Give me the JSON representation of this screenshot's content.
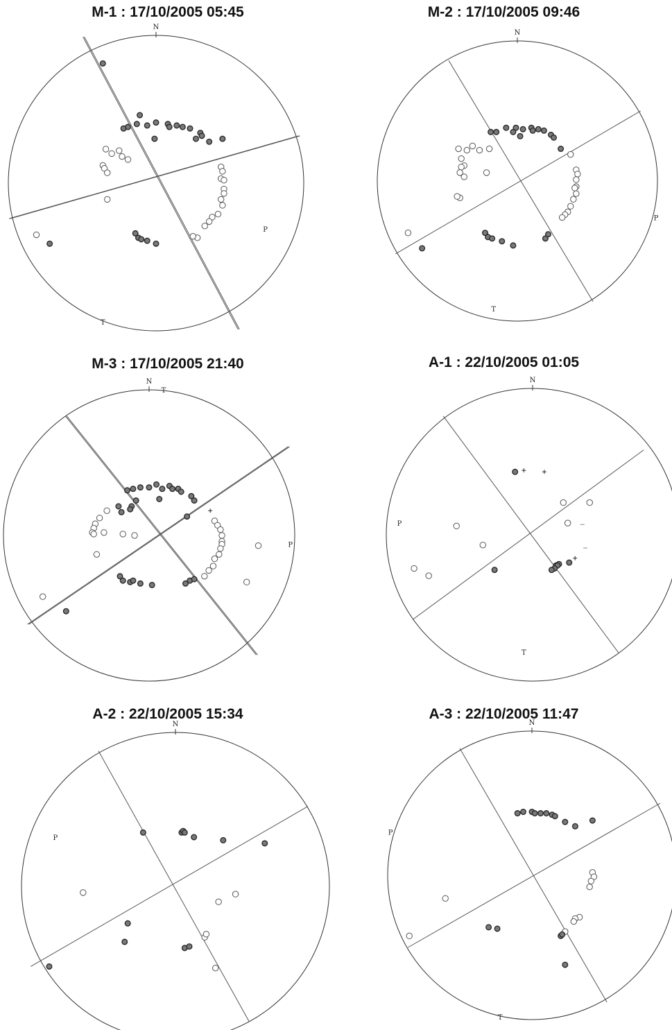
{
  "labels": {
    "north": "N",
    "p_axis": "P",
    "t_axis": "T"
  },
  "colors": {
    "stroke": "#333333",
    "filled": "#7a7a7a",
    "line": "#555555"
  },
  "panels": [
    {
      "id": "M-1",
      "title": "M-1 : 17/10/2005 05:45",
      "planes": [
        {
          "a": [
            -0.49,
            -0.99
          ],
          "b": [
            0.56,
            0.99
          ],
          "double": true
        },
        {
          "a": [
            -0.99,
            0.24
          ],
          "b": [
            0.97,
            -0.32
          ],
          "double": true
        }
      ],
      "p": [
        0.74,
        0.31
      ],
      "t": [
        -0.36,
        0.94
      ],
      "filled": [
        [
          -0.36,
          -0.81
        ],
        [
          -0.11,
          -0.46
        ],
        [
          -0.22,
          -0.37
        ],
        [
          -0.19,
          -0.38
        ],
        [
          -0.13,
          -0.4
        ],
        [
          -0.06,
          -0.39
        ],
        [
          0.0,
          -0.41
        ],
        [
          0.08,
          -0.4
        ],
        [
          0.09,
          -0.38
        ],
        [
          0.14,
          -0.39
        ],
        [
          0.18,
          -0.38
        ],
        [
          0.23,
          -0.37
        ],
        [
          0.3,
          -0.34
        ],
        [
          0.31,
          -0.32
        ],
        [
          0.36,
          -0.28
        ],
        [
          0.45,
          -0.3
        ],
        [
          -0.01,
          -0.3
        ],
        [
          0.27,
          -0.3
        ],
        [
          -0.14,
          0.34
        ],
        [
          -0.12,
          0.37
        ],
        [
          -0.1,
          0.38
        ],
        [
          -0.06,
          0.39
        ],
        [
          0.0,
          0.41
        ],
        [
          -0.72,
          0.41
        ]
      ],
      "open": [
        [
          -0.34,
          -0.23
        ],
        [
          -0.36,
          -0.12
        ],
        [
          -0.35,
          -0.1
        ],
        [
          -0.33,
          -0.07
        ],
        [
          -0.3,
          -0.2
        ],
        [
          -0.25,
          -0.22
        ],
        [
          -0.23,
          -0.18
        ],
        [
          -0.19,
          -0.16
        ],
        [
          -0.33,
          0.11
        ],
        [
          -0.81,
          0.35
        ],
        [
          0.44,
          -0.11
        ],
        [
          0.45,
          -0.08
        ],
        [
          0.44,
          -0.03
        ],
        [
          0.46,
          -0.02
        ],
        [
          0.46,
          0.04
        ],
        [
          0.46,
          0.07
        ],
        [
          0.44,
          0.11
        ],
        [
          0.45,
          0.15
        ],
        [
          0.42,
          0.21
        ],
        [
          0.38,
          0.23
        ],
        [
          0.36,
          0.26
        ],
        [
          0.33,
          0.29
        ],
        [
          0.28,
          0.37
        ],
        [
          0.25,
          0.36
        ]
      ],
      "plus": []
    },
    {
      "id": "M-2",
      "title": "M-2 : 17/10/2005 09:46",
      "planes": [
        {
          "a": [
            -0.49,
            -0.86
          ],
          "b": [
            0.54,
            0.86
          ]
        },
        {
          "a": [
            -0.87,
            0.52
          ],
          "b": [
            0.88,
            -0.5
          ]
        }
      ],
      "p": [
        0.99,
        0.26
      ],
      "t": [
        -0.17,
        0.91
      ],
      "filled": [
        [
          -0.19,
          -0.35
        ],
        [
          -0.15,
          -0.35
        ],
        [
          -0.08,
          -0.38
        ],
        [
          -0.03,
          -0.35
        ],
        [
          -0.01,
          -0.38
        ],
        [
          0.04,
          -0.37
        ],
        [
          0.1,
          -0.38
        ],
        [
          0.11,
          -0.36
        ],
        [
          0.15,
          -0.37
        ],
        [
          0.19,
          -0.36
        ],
        [
          0.24,
          -0.33
        ],
        [
          0.26,
          -0.31
        ],
        [
          0.31,
          -0.23
        ],
        [
          0.02,
          -0.32
        ],
        [
          -0.23,
          0.37
        ],
        [
          -0.21,
          0.4
        ],
        [
          -0.18,
          0.41
        ],
        [
          -0.11,
          0.43
        ],
        [
          -0.03,
          0.46
        ],
        [
          0.2,
          0.41
        ],
        [
          0.22,
          0.38
        ],
        [
          -0.68,
          0.48
        ]
      ],
      "open": [
        [
          -0.42,
          -0.23
        ],
        [
          -0.36,
          -0.22
        ],
        [
          -0.32,
          -0.25
        ],
        [
          -0.27,
          -0.22
        ],
        [
          -0.2,
          -0.23
        ],
        [
          -0.4,
          -0.16
        ],
        [
          -0.38,
          -0.11
        ],
        [
          -0.4,
          -0.1
        ],
        [
          -0.41,
          -0.06
        ],
        [
          -0.38,
          -0.03
        ],
        [
          -0.22,
          -0.06
        ],
        [
          -0.41,
          0.12
        ],
        [
          -0.43,
          0.11
        ],
        [
          -0.78,
          0.37
        ],
        [
          0.38,
          -0.19
        ],
        [
          0.42,
          -0.08
        ],
        [
          0.43,
          -0.05
        ],
        [
          0.42,
          -0.01
        ],
        [
          0.42,
          0.04
        ],
        [
          0.41,
          0.05
        ],
        [
          0.42,
          0.09
        ],
        [
          0.4,
          0.13
        ],
        [
          0.38,
          0.18
        ],
        [
          0.36,
          0.22
        ],
        [
          0.34,
          0.24
        ],
        [
          0.32,
          0.26
        ]
      ],
      "plus": []
    },
    {
      "id": "M-3",
      "title": "M-3 : 17/10/2005 21:40",
      "planes": [
        {
          "a": [
            -0.57,
            -0.82
          ],
          "b": [
            0.74,
            0.82
          ],
          "double": true
        },
        {
          "a": [
            -0.83,
            0.61
          ],
          "b": [
            0.96,
            -0.61
          ],
          "double": true
        }
      ],
      "p": [
        0.97,
        0.06
      ],
      "t": [
        0.1,
        -1.0
      ],
      "filled": [
        [
          -0.15,
          -0.31
        ],
        [
          -0.11,
          -0.32
        ],
        [
          -0.06,
          -0.33
        ],
        [
          0.0,
          -0.33
        ],
        [
          0.05,
          -0.35
        ],
        [
          0.09,
          -0.32
        ],
        [
          0.14,
          -0.34
        ],
        [
          0.16,
          -0.32
        ],
        [
          0.2,
          -0.32
        ],
        [
          0.22,
          -0.3
        ],
        [
          0.29,
          -0.27
        ],
        [
          0.31,
          -0.24
        ],
        [
          -0.21,
          -0.2
        ],
        [
          -0.12,
          -0.2
        ],
        [
          -0.09,
          -0.24
        ],
        [
          -0.13,
          -0.18
        ],
        [
          -0.19,
          -0.16
        ],
        [
          0.07,
          -0.25
        ],
        [
          0.26,
          -0.13
        ],
        [
          -0.2,
          0.28
        ],
        [
          -0.18,
          0.31
        ],
        [
          -0.13,
          0.32
        ],
        [
          -0.11,
          0.31
        ],
        [
          -0.06,
          0.33
        ],
        [
          0.02,
          0.34
        ],
        [
          0.25,
          0.33
        ],
        [
          0.28,
          0.31
        ],
        [
          0.31,
          0.3
        ],
        [
          -0.57,
          0.52
        ]
      ],
      "open": [
        [
          -0.29,
          -0.17
        ],
        [
          -0.34,
          -0.12
        ],
        [
          -0.37,
          -0.08
        ],
        [
          -0.38,
          -0.05
        ],
        [
          -0.39,
          -0.02
        ],
        [
          -0.38,
          -0.01
        ],
        [
          -0.31,
          -0.02
        ],
        [
          -0.18,
          -0.01
        ],
        [
          -0.1,
          -0.0
        ],
        [
          -0.36,
          0.13
        ],
        [
          -0.73,
          0.42
        ],
        [
          0.45,
          -0.1
        ],
        [
          0.47,
          -0.07
        ],
        [
          0.49,
          -0.04
        ],
        [
          0.5,
          -0.0
        ],
        [
          0.5,
          0.04
        ],
        [
          0.5,
          0.06
        ],
        [
          0.49,
          0.09
        ],
        [
          0.48,
          0.13
        ],
        [
          0.45,
          0.16
        ],
        [
          0.44,
          0.21
        ],
        [
          0.41,
          0.24
        ],
        [
          0.38,
          0.28
        ],
        [
          0.75,
          0.07
        ],
        [
          0.67,
          0.32
        ]
      ],
      "plus": [
        [
          0.42,
          -0.17
        ]
      ]
    },
    {
      "id": "A-1",
      "title": "A-1 : 22/10/2005 01:05",
      "planes": [
        {
          "a": [
            -0.61,
            -0.81
          ],
          "b": [
            0.59,
            0.81
          ]
        },
        {
          "a": [
            -0.82,
            0.58
          ],
          "b": [
            0.76,
            -0.58
          ]
        }
      ],
      "p": [
        -0.91,
        -0.08
      ],
      "t": [
        -0.06,
        0.8
      ],
      "filled": [
        [
          -0.12,
          -0.43
        ],
        [
          0.16,
          0.21
        ],
        [
          0.18,
          0.2
        ],
        [
          0.17,
          0.21
        ],
        [
          0.15,
          0.23
        ],
        [
          0.13,
          0.24
        ],
        [
          0.25,
          0.19
        ],
        [
          -0.26,
          0.24
        ]
      ],
      "open": [
        [
          0.21,
          -0.22
        ],
        [
          0.39,
          -0.22
        ],
        [
          0.24,
          -0.08
        ],
        [
          -0.52,
          -0.06
        ],
        [
          -0.34,
          0.07
        ],
        [
          -0.81,
          0.23
        ],
        [
          -0.71,
          0.28
        ]
      ],
      "plus": [
        [
          -0.06,
          -0.44
        ],
        [
          0.08,
          -0.43
        ],
        [
          0.29,
          0.16
        ]
      ],
      "dashes": [
        [
          0.34,
          -0.07
        ],
        [
          0.36,
          0.09
        ]
      ]
    },
    {
      "id": "A-2",
      "title": "A-2 : 22/10/2005 15:34",
      "planes": [
        {
          "a": [
            -0.5,
            -0.88
          ],
          "b": [
            0.48,
            0.88
          ]
        },
        {
          "a": [
            -0.94,
            0.52
          ],
          "b": [
            0.86,
            -0.52
          ]
        }
      ],
      "p": [
        -0.78,
        -0.32
      ],
      "t": [
        -0.4,
        0.97
      ],
      "filled": [
        [
          -0.21,
          -0.35
        ],
        [
          0.04,
          -0.35
        ],
        [
          0.05,
          -0.36
        ],
        [
          0.06,
          -0.35
        ],
        [
          0.12,
          -0.32
        ],
        [
          0.31,
          -0.3
        ],
        [
          0.58,
          -0.28
        ],
        [
          -0.31,
          0.24
        ],
        [
          -0.33,
          0.36
        ],
        [
          0.06,
          0.4
        ],
        [
          0.09,
          0.39
        ],
        [
          -0.82,
          0.52
        ]
      ],
      "open": [
        [
          -0.6,
          0.04
        ],
        [
          0.39,
          0.05
        ],
        [
          0.28,
          0.1
        ],
        [
          0.19,
          0.33
        ],
        [
          0.2,
          0.31
        ],
        [
          0.26,
          0.53
        ]
      ],
      "plus": []
    },
    {
      "id": "A-3",
      "title": "A-3 : 22/10/2005 11:47",
      "planes": [
        {
          "a": [
            -0.5,
            -0.88
          ],
          "b": [
            0.52,
            0.88
          ]
        },
        {
          "a": [
            -0.86,
            0.5
          ],
          "b": [
            0.89,
            -0.5
          ]
        }
      ],
      "p": [
        -0.98,
        -0.3
      ],
      "t": [
        -0.22,
        0.98
      ],
      "filled": [
        [
          -0.1,
          -0.43
        ],
        [
          -0.06,
          -0.44
        ],
        [
          0.0,
          -0.44
        ],
        [
          0.02,
          -0.43
        ],
        [
          0.06,
          -0.43
        ],
        [
          0.1,
          -0.43
        ],
        [
          0.14,
          -0.42
        ],
        [
          0.16,
          -0.41
        ],
        [
          0.23,
          -0.37
        ],
        [
          0.3,
          -0.34
        ],
        [
          0.42,
          -0.38
        ],
        [
          -0.3,
          0.36
        ],
        [
          -0.24,
          0.37
        ],
        [
          0.2,
          0.42
        ],
        [
          0.21,
          0.41
        ],
        [
          0.23,
          0.62
        ]
      ],
      "open": [
        [
          0.42,
          -0.02
        ],
        [
          0.43,
          0.01
        ],
        [
          0.41,
          0.04
        ],
        [
          0.4,
          0.08
        ],
        [
          0.33,
          0.29
        ],
        [
          0.3,
          0.3
        ],
        [
          0.29,
          0.32
        ],
        [
          -0.6,
          0.16
        ],
        [
          -0.85,
          0.42
        ],
        [
          0.23,
          0.39
        ]
      ],
      "plus": []
    }
  ]
}
